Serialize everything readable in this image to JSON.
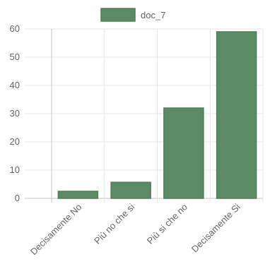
{
  "colors": {
    "bar_fill": "#5b8a64",
    "bar_stroke": "#4f7f59",
    "grid": "#e6e6e6",
    "axis": "#c4c4c4",
    "text": "#666666"
  },
  "chart_data": {
    "type": "bar",
    "title": "",
    "xlabel": "",
    "ylabel": "",
    "categories": [
      "Decisamente No",
      "Più no che si",
      "Più si che no",
      "Decisamente Si"
    ],
    "series": [
      {
        "name": "doc_7",
        "values": [
          2.5,
          5.7,
          32,
          59
        ]
      }
    ],
    "ylim": [
      0,
      60
    ],
    "yticks": [
      0,
      10,
      20,
      30,
      40,
      50,
      60
    ],
    "grid": true,
    "legend_position": "top-center"
  }
}
